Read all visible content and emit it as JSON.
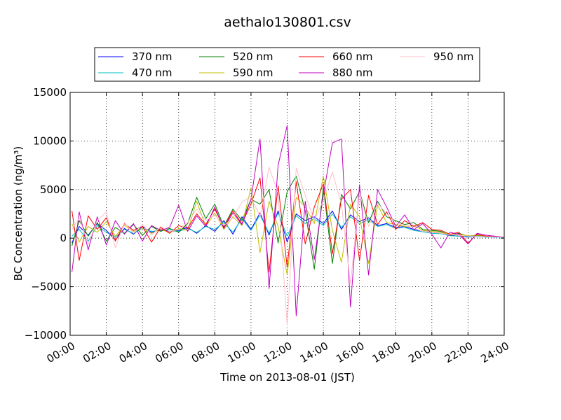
{
  "chart_data": {
    "type": "line",
    "title": "aethalo130801.csv",
    "xlabel": "Time on 2013-08-01 (JST)",
    "ylabel": "BC Concentration (ng/m³)",
    "xlim": [
      0,
      24
    ],
    "ylim": [
      -10000,
      15000
    ],
    "x_ticks": [
      0,
      2,
      4,
      6,
      8,
      10,
      12,
      14,
      16,
      18,
      20,
      22,
      24
    ],
    "x_tick_labels": [
      "00:00",
      "02:00",
      "04:00",
      "06:00",
      "08:00",
      "10:00",
      "12:00",
      "14:00",
      "16:00",
      "18:00",
      "20:00",
      "22:00",
      "24:00"
    ],
    "y_ticks": [
      -10000,
      -5000,
      0,
      5000,
      10000,
      15000
    ],
    "y_tick_labels": [
      "−10000",
      "−5000",
      "0",
      "5000",
      "10000",
      "15000"
    ],
    "grid": true,
    "legend_position": "top",
    "legend_columns": 4,
    "series": [
      {
        "name": "370 nm",
        "color": "#0000ff",
        "x": [
          0.1,
          0.5,
          1,
          1.5,
          2,
          2.5,
          3,
          3.5,
          4,
          4.5,
          5,
          5.5,
          6,
          6.5,
          7,
          7.5,
          8,
          8.5,
          9,
          9.5,
          10,
          10.5,
          11,
          11.5,
          12,
          12.5,
          13,
          13.5,
          14,
          14.5,
          15,
          15.5,
          16,
          16.5,
          17,
          17.5,
          18,
          18.5,
          19,
          19.5,
          20,
          20.5,
          21,
          21.5,
          22,
          22.5,
          23,
          23.5,
          24
        ],
        "values": [
          -500,
          1200,
          300,
          1500,
          800,
          -200,
          1000,
          400,
          1200,
          600,
          900,
          700,
          800,
          1100,
          500,
          1300,
          700,
          1800,
          400,
          2200,
          900,
          2600,
          300,
          2800,
          -400,
          2500,
          1800,
          2200,
          1500,
          2800,
          900,
          2400,
          1700,
          2100,
          1300,
          1500,
          1100,
          1200,
          900,
          700,
          600,
          500,
          300,
          200,
          100,
          200,
          150,
          100,
          100
        ]
      },
      {
        "name": "470 nm",
        "color": "#00bfbf",
        "x": [
          0.1,
          0.5,
          1,
          1.5,
          2,
          2.5,
          3,
          3.5,
          4,
          4.5,
          5,
          5.5,
          6,
          6.5,
          7,
          7.5,
          8,
          8.5,
          9,
          9.5,
          10,
          10.5,
          11,
          11.5,
          12,
          12.5,
          13,
          13.5,
          14,
          14.5,
          15,
          15.5,
          16,
          16.5,
          17,
          17.5,
          18,
          18.5,
          19,
          19.5,
          20,
          20.5,
          21,
          21.5,
          22,
          22.5,
          23,
          23.5,
          24
        ],
        "values": [
          200,
          900,
          -300,
          1300,
          600,
          100,
          900,
          500,
          1000,
          700,
          800,
          900,
          700,
          1000,
          600,
          1200,
          900,
          1600,
          600,
          2000,
          800,
          2400,
          500,
          2600,
          200,
          2300,
          1500,
          2000,
          1300,
          2500,
          1100,
          2200,
          1500,
          1900,
          1200,
          1400,
          1000,
          1100,
          800,
          650,
          500,
          450,
          250,
          200,
          150,
          150,
          100,
          100,
          80
        ]
      },
      {
        "name": "520 nm",
        "color": "#008000",
        "x": [
          0.1,
          0.5,
          1,
          1.5,
          2,
          2.5,
          3,
          3.5,
          4,
          4.5,
          5,
          5.5,
          6,
          6.5,
          7,
          7.5,
          8,
          8.5,
          9,
          9.5,
          10,
          10.5,
          11,
          11.5,
          12,
          12.5,
          13,
          13.5,
          14,
          14.5,
          15,
          15.5,
          16,
          16.5,
          17,
          17.5,
          18,
          18.5,
          19,
          19.5,
          20,
          20.5,
          21,
          21.5,
          22,
          22.5,
          23,
          23.5,
          24
        ],
        "values": [
          -800,
          1800,
          200,
          1600,
          -300,
          1100,
          500,
          1400,
          300,
          1200,
          700,
          1000,
          600,
          1500,
          4200,
          2000,
          3500,
          1200,
          3000,
          1800,
          4000,
          3500,
          5000,
          -500,
          4800,
          6400,
          2800,
          -3200,
          5200,
          -2600,
          4500,
          3000,
          4800,
          1600,
          3800,
          2200,
          1800,
          1400,
          1600,
          900,
          800,
          700,
          300,
          500,
          200,
          300,
          200,
          150,
          100
        ]
      },
      {
        "name": "590 nm",
        "color": "#bfbf00",
        "x": [
          0.1,
          0.5,
          1,
          1.5,
          2,
          2.5,
          3,
          3.5,
          4,
          4.5,
          5,
          5.5,
          6,
          6.5,
          7,
          7.5,
          8,
          8.5,
          9,
          9.5,
          10,
          10.5,
          11,
          11.5,
          12,
          12.5,
          13,
          13.5,
          14,
          14.5,
          15,
          15.5,
          16,
          16.5,
          17,
          17.5,
          18,
          18.5,
          19,
          19.5,
          20,
          20.5,
          21,
          21.5,
          22,
          22.5,
          23,
          23.5,
          24
        ],
        "values": [
          1500,
          -400,
          1200,
          600,
          1700,
          200,
          1300,
          700,
          1000,
          500,
          900,
          600,
          1000,
          800,
          3800,
          1200,
          2600,
          900,
          2200,
          1300,
          5200,
          -1500,
          3800,
          1200,
          -3800,
          4200,
          3200,
          1500,
          6400,
          800,
          -2500,
          3500,
          2200,
          -2600,
          3400,
          1600,
          1400,
          1200,
          1300,
          800,
          700,
          600,
          350,
          400,
          250,
          250,
          200,
          150,
          120
        ]
      },
      {
        "name": "660 nm",
        "color": "#ff0000",
        "x": [
          0.1,
          0.5,
          1,
          1.5,
          2,
          2.5,
          3,
          3.5,
          4,
          4.5,
          5,
          5.5,
          6,
          6.5,
          7,
          7.5,
          8,
          8.5,
          9,
          9.5,
          10,
          10.5,
          11,
          11.5,
          12,
          12.5,
          13,
          13.5,
          14,
          14.5,
          15,
          15.5,
          16,
          16.5,
          17,
          17.5,
          18,
          18.5,
          19,
          19.5,
          20,
          20.5,
          21,
          21.5,
          22,
          22.5,
          23,
          23.5,
          24
        ],
        "values": [
          2800,
          -2300,
          2300,
          900,
          2100,
          -300,
          1500,
          800,
          1200,
          -400,
          1100,
          500,
          1300,
          1000,
          2500,
          1400,
          3000,
          1100,
          2800,
          1500,
          3500,
          6200,
          -3500,
          5400,
          -3000,
          5800,
          -600,
          3200,
          5600,
          -1600,
          4000,
          5000,
          -2300,
          4400,
          1400,
          2700,
          900,
          1800,
          1200,
          1600,
          900,
          800,
          400,
          600,
          -500,
          400,
          200,
          150,
          100
        ]
      },
      {
        "name": "880 nm",
        "color": "#bf00bf",
        "x": [
          0.1,
          0.5,
          1,
          1.5,
          2,
          2.5,
          3,
          3.5,
          4,
          4.5,
          5,
          5.5,
          6,
          6.5,
          7,
          7.5,
          8,
          8.5,
          9,
          9.5,
          10,
          10.5,
          11,
          11.5,
          12,
          12.5,
          13,
          13.5,
          14,
          14.5,
          15,
          15.5,
          16,
          16.5,
          17,
          17.5,
          18,
          18.5,
          19,
          19.5,
          20,
          20.5,
          21,
          21.5,
          22,
          22.5,
          23,
          23.5,
          24
        ],
        "values": [
          -3500,
          2700,
          -1200,
          2200,
          -700,
          1800,
          400,
          1500,
          -300,
          1300,
          800,
          1100,
          3400,
          700,
          2300,
          1200,
          3200,
          1000,
          2600,
          1400,
          4000,
          10200,
          -5200,
          7500,
          11600,
          -8000,
          3800,
          -2200,
          4500,
          9800,
          10200,
          -7100,
          5500,
          -3800,
          5000,
          3200,
          1200,
          2400,
          900,
          1500,
          400,
          -1000,
          600,
          400,
          -600,
          500,
          300,
          200,
          100
        ]
      },
      {
        "name": "950 nm",
        "color": "#ffc0cb",
        "x": [
          0.1,
          0.5,
          1,
          1.5,
          2,
          2.5,
          3,
          3.5,
          4,
          4.5,
          5,
          5.5,
          6,
          6.5,
          7,
          7.5,
          8,
          8.5,
          9,
          9.5,
          10,
          10.5,
          11,
          11.5,
          12,
          12.5,
          13,
          13.5,
          14,
          14.5,
          15,
          15.5,
          16,
          16.5,
          17,
          17.5,
          18,
          18.5,
          19,
          19.5,
          20,
          20.5,
          21,
          21.5,
          22,
          22.5,
          23,
          23.5,
          24
        ],
        "values": [
          900,
          2100,
          -600,
          1800,
          2700,
          -1000,
          1600,
          500,
          1400,
          300,
          1200,
          700,
          900,
          1600,
          3000,
          1800,
          2400,
          1300,
          2100,
          3700,
          4300,
          2200,
          7300,
          4600,
          -9000,
          7200,
          4400,
          1800,
          3900,
          6800,
          3500,
          -4700,
          4700,
          1200,
          3600,
          2500,
          1600,
          1300,
          1000,
          700,
          600,
          500,
          350,
          300,
          200,
          200,
          150,
          120,
          100
        ]
      }
    ]
  }
}
